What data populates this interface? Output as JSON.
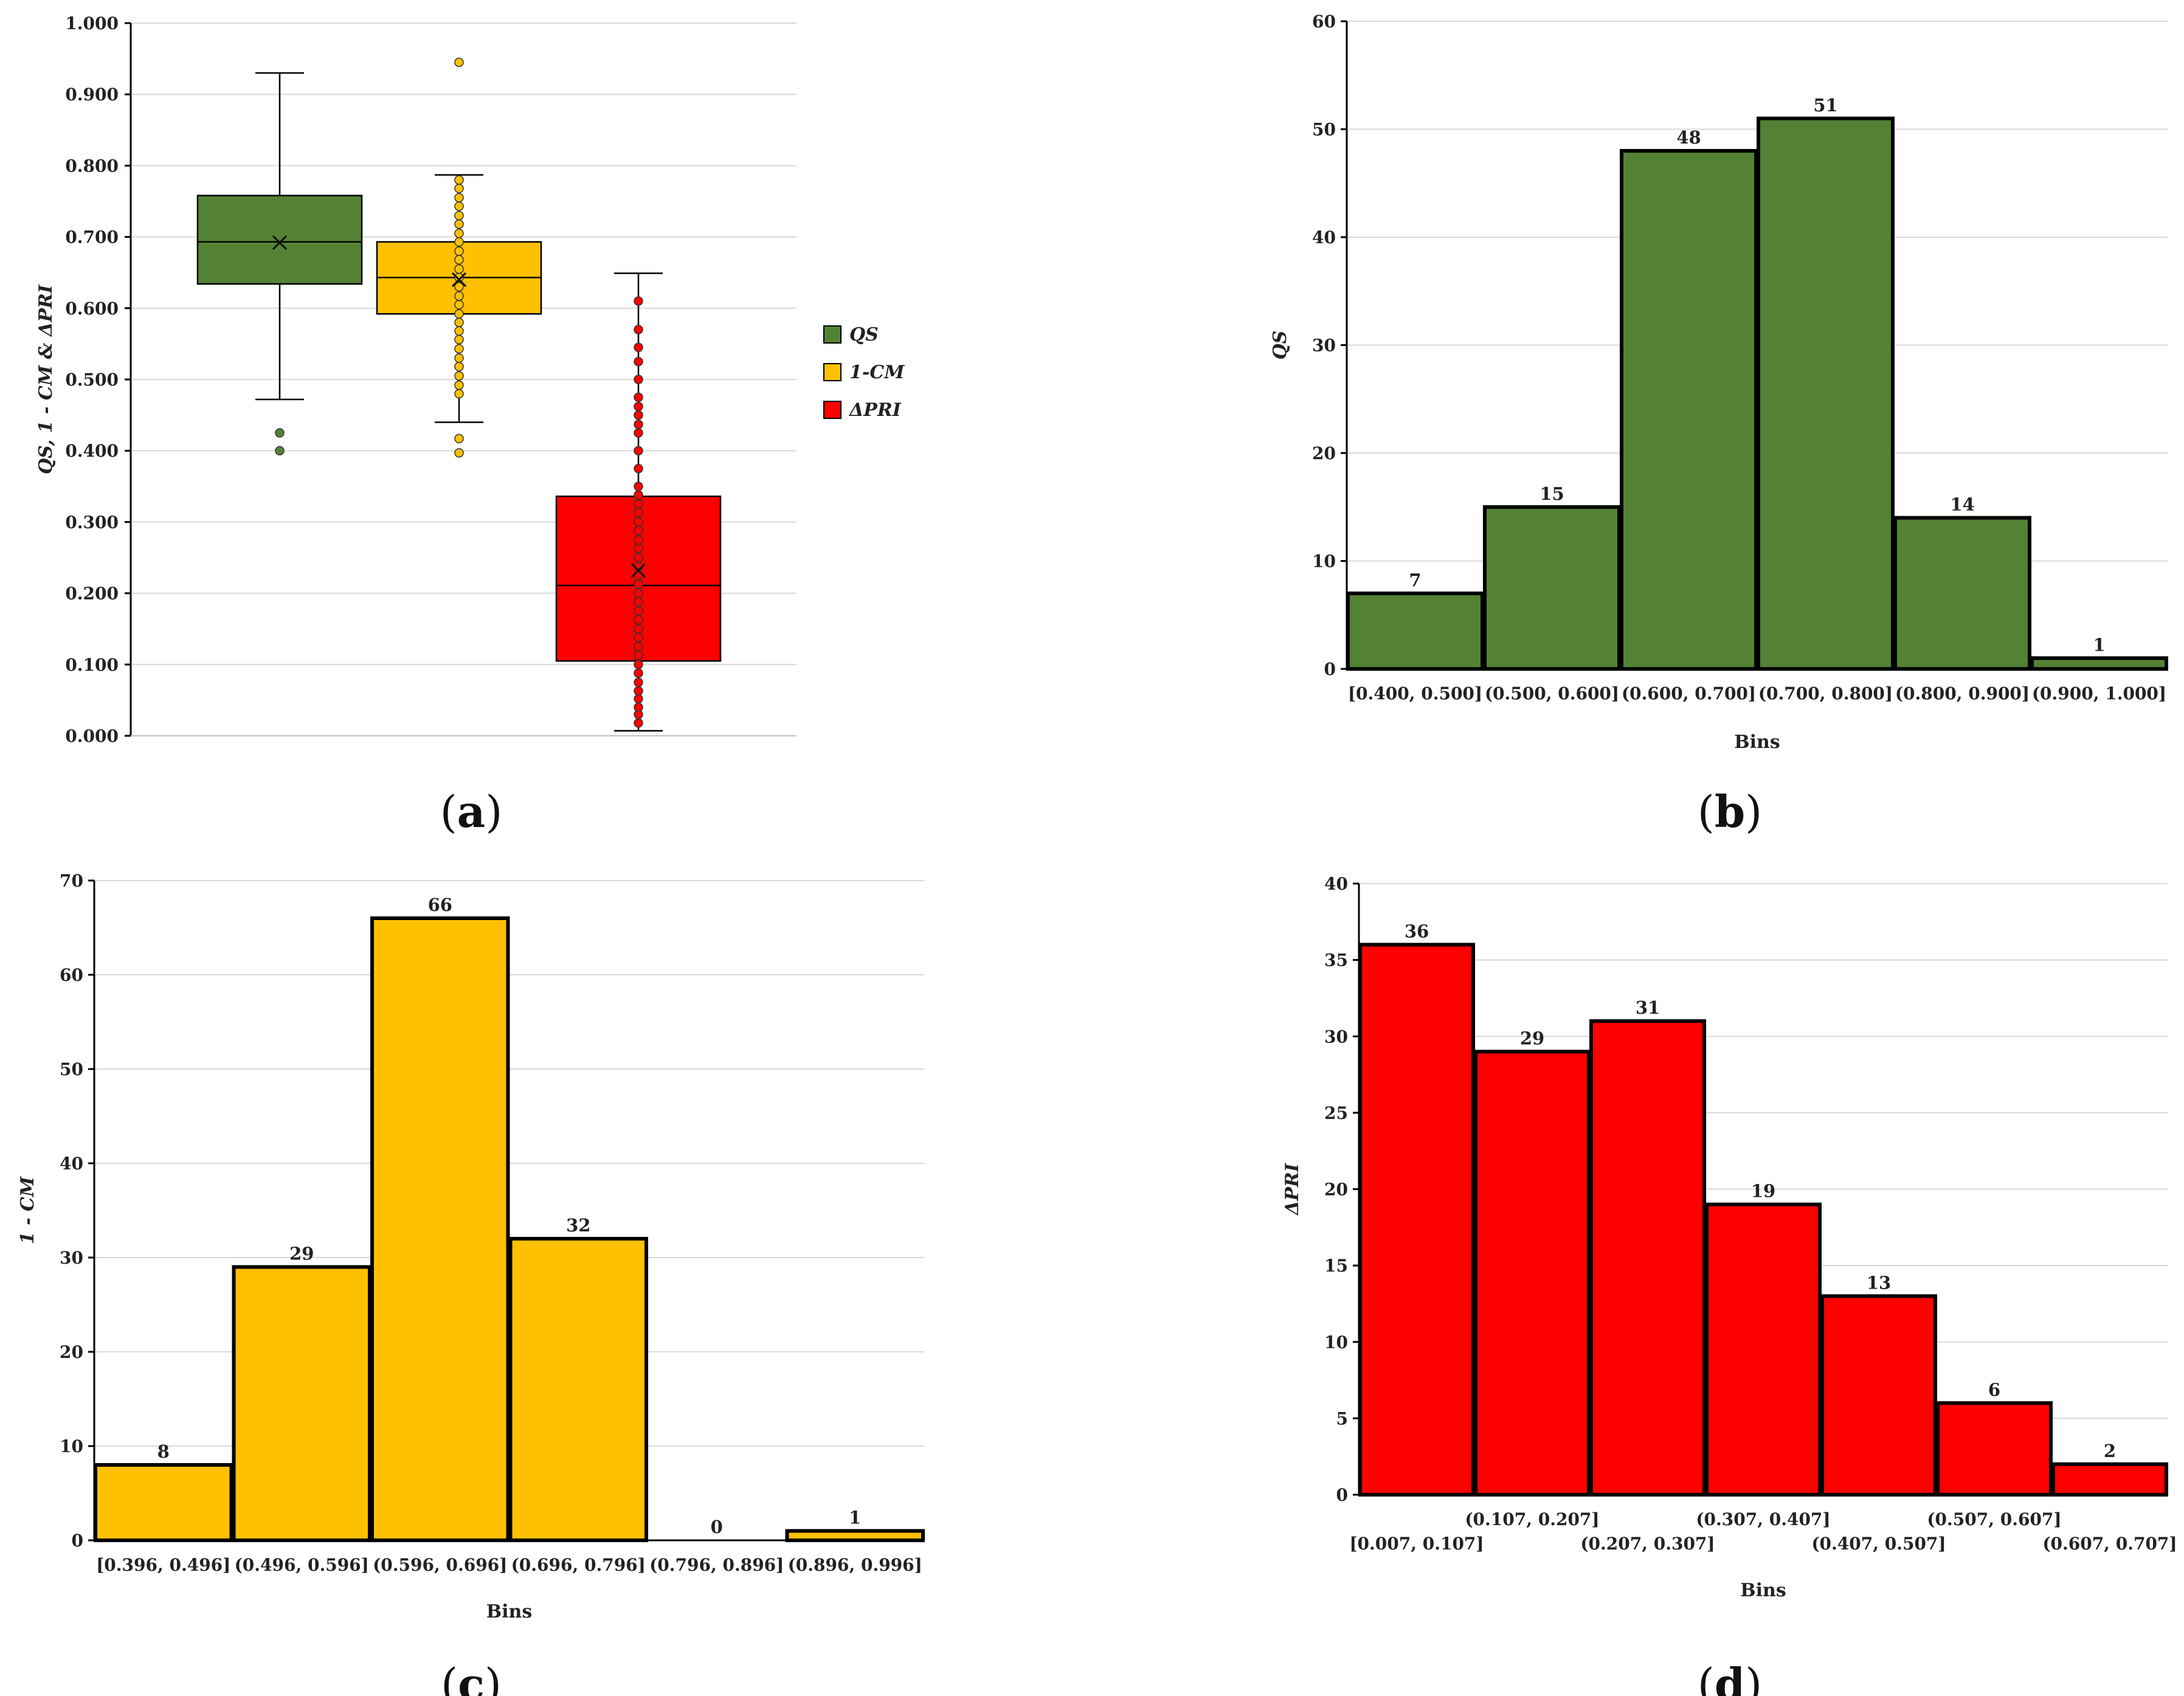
{
  "colors": {
    "green": "#548235",
    "yellow": "#FFC000",
    "red": "#FF0000"
  },
  "chart_data": [
    {
      "type": "box",
      "panel_label": "a",
      "ylabel": "QS, 1 - CM & ΔPRI",
      "ylim": [
        0,
        1
      ],
      "yticks": [
        "0.000",
        "0.100",
        "0.200",
        "0.300",
        "0.400",
        "0.500",
        "0.600",
        "0.700",
        "0.800",
        "0.900",
        "1.000"
      ],
      "legend": [
        "QS",
        "1-CM",
        "ΔPRI"
      ],
      "series": [
        {
          "name": "QS",
          "color": "green",
          "whisker_low": 0.472,
          "q1": 0.634,
          "median": 0.693,
          "q3": 0.758,
          "whisker_high": 0.93,
          "mean": 0.692,
          "points": [
            0.4,
            0.425
          ]
        },
        {
          "name": "1-CM",
          "color": "yellow",
          "whisker_low": 0.44,
          "q1": 0.592,
          "median": 0.643,
          "q3": 0.693,
          "whisker_high": 0.787,
          "mean": 0.64,
          "points": [
            0.397,
            0.417,
            0.48,
            0.492,
            0.505,
            0.518,
            0.53,
            0.543,
            0.556,
            0.568,
            0.58,
            0.592,
            0.605,
            0.617,
            0.63,
            0.643,
            0.655,
            0.668,
            0.68,
            0.693,
            0.705,
            0.718,
            0.73,
            0.743,
            0.755,
            0.768,
            0.78,
            0.945
          ]
        },
        {
          "name": "ΔPRI",
          "color": "red",
          "whisker_low": 0.007,
          "q1": 0.105,
          "median": 0.211,
          "q3": 0.336,
          "whisker_high": 0.649,
          "mean": 0.232,
          "points": [
            0.018,
            0.03,
            0.04,
            0.052,
            0.063,
            0.075,
            0.088,
            0.1,
            0.113,
            0.125,
            0.138,
            0.15,
            0.163,
            0.175,
            0.188,
            0.2,
            0.213,
            0.225,
            0.238,
            0.25,
            0.263,
            0.275,
            0.288,
            0.3,
            0.313,
            0.325,
            0.338,
            0.35,
            0.375,
            0.4,
            0.425,
            0.437,
            0.45,
            0.462,
            0.475,
            0.5,
            0.525,
            0.545,
            0.57,
            0.61
          ]
        }
      ]
    },
    {
      "type": "bar",
      "panel_label": "b",
      "color": "green",
      "ylabel": "QS",
      "xlabel": "Bins",
      "ylim": [
        0,
        60
      ],
      "yticks": [
        0,
        10,
        20,
        30,
        40,
        50,
        60
      ],
      "categories": [
        "[0.400, 0.500]",
        "(0.500, 0.600]",
        "(0.600, 0.700]",
        "(0.700, 0.800]",
        "(0.800, 0.900]",
        "(0.900, 1.000]"
      ],
      "values": [
        7,
        15,
        48,
        51,
        14,
        1
      ]
    },
    {
      "type": "bar",
      "panel_label": "c",
      "color": "yellow",
      "ylabel": "1 - CM",
      "xlabel": "Bins",
      "ylim": [
        0,
        70
      ],
      "yticks": [
        0,
        10,
        20,
        30,
        40,
        50,
        60,
        70
      ],
      "categories": [
        "[0.396, 0.496]",
        "(0.496, 0.596]",
        "(0.596, 0.696]",
        "(0.696, 0.796]",
        "(0.796, 0.896]",
        "(0.896, 0.996]"
      ],
      "values": [
        8,
        29,
        66,
        32,
        0,
        1
      ]
    },
    {
      "type": "bar",
      "panel_label": "d",
      "color": "red",
      "ylabel": "ΔPRI",
      "xlabel": "Bins",
      "ylim": [
        0,
        40
      ],
      "yticks": [
        0,
        5,
        10,
        15,
        20,
        25,
        30,
        35,
        40
      ],
      "categories": [
        "[0.007, 0.107]",
        "(0.107, 0.207]",
        "(0.207, 0.307]",
        "(0.307, 0.407]",
        "(0.407, 0.507]",
        "(0.507, 0.607]",
        "(0.607, 0.707]"
      ],
      "values": [
        36,
        29,
        31,
        19,
        13,
        6,
        2
      ]
    }
  ]
}
